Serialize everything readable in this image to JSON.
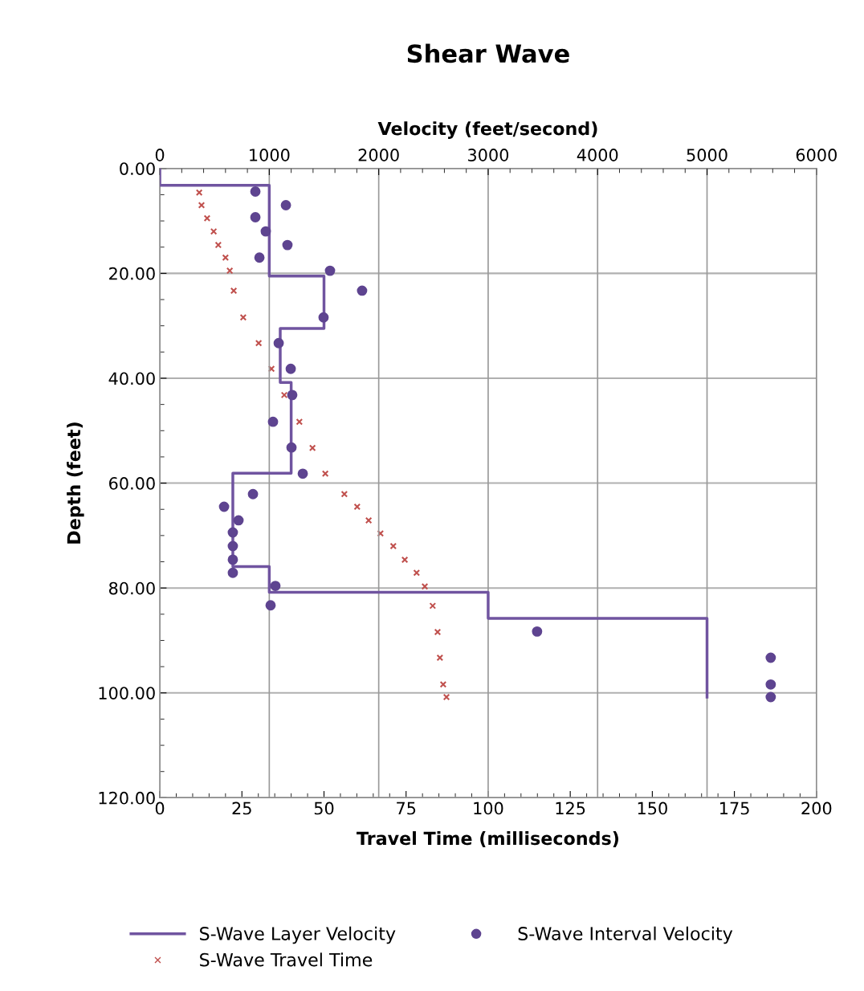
{
  "chart_data": {
    "type": "line",
    "title": "Shear Wave",
    "xlabel": "Travel Time (milliseconds)",
    "x2label": "Velocity (feet/second)",
    "ylabel": "Depth (feet)",
    "xlim": [
      0,
      200
    ],
    "xticks": [
      0,
      25,
      50,
      75,
      100,
      125,
      150,
      175,
      200
    ],
    "x2lim": [
      0,
      6000
    ],
    "x2ticks": [
      0,
      1000,
      2000,
      3000,
      4000,
      5000,
      6000
    ],
    "ylim": [
      120,
      0
    ],
    "yticks": [
      {
        "value": 0,
        "label": "0.00"
      },
      {
        "value": 20,
        "label": "20.00"
      },
      {
        "value": 40,
        "label": "40.00"
      },
      {
        "value": 60,
        "label": "60.00"
      },
      {
        "value": 80,
        "label": "80.00"
      },
      {
        "value": 100,
        "label": "100.00"
      },
      {
        "value": 120,
        "label": "120.00"
      }
    ],
    "grid": true,
    "legend": "bottom",
    "series": [
      {
        "name": "S-Wave Layer Velocity",
        "axis": "x2",
        "color": "#7054a0",
        "marker": "none",
        "line_style": "solid",
        "x": [
          0,
          0,
          1000,
          1000,
          1500,
          1500,
          1100,
          1100,
          1200,
          1200,
          667,
          667,
          1000,
          1000,
          3000,
          3000,
          5000,
          5000
        ],
        "values": [
          0,
          3.2,
          3.2,
          20.5,
          20.5,
          30.5,
          30.5,
          40.8,
          40.8,
          58.1,
          58.1,
          75.9,
          75.9,
          80.8,
          80.8,
          85.8,
          85.8,
          100.8
        ]
      },
      {
        "name": "S-Wave Interval Velocity",
        "type": "scatter",
        "axis": "x2",
        "color": "#5e4490",
        "marker": "circle",
        "x": [
          873,
          1152,
          873,
          968,
          1166,
          910,
          1555,
          1848,
          1496,
          1086,
          1196,
          1210,
          1034,
          1203,
          1306,
          851,
          587,
          719,
          667,
          667,
          667,
          667,
          1056,
          1012,
          3447,
          5582,
          5582,
          5582
        ],
        "values": [
          4.4,
          7.0,
          9.3,
          12.0,
          14.6,
          17.0,
          19.5,
          23.3,
          28.4,
          33.3,
          38.2,
          43.2,
          48.3,
          53.2,
          58.2,
          62.1,
          64.5,
          67.1,
          69.4,
          72.0,
          74.6,
          77.1,
          79.6,
          83.3,
          88.3,
          93.3,
          98.4,
          100.8
        ]
      },
      {
        "name": "S-Wave Travel Time",
        "type": "scatter",
        "color": "#c0504d",
        "marker": "cross",
        "x": [
          12.0,
          12.7,
          14.4,
          16.4,
          17.8,
          20.0,
          21.3,
          22.5,
          25.4,
          30.1,
          34.0,
          37.9,
          42.5,
          46.5,
          50.4,
          56.2,
          60.1,
          63.6,
          67.2,
          71.1,
          74.6,
          78.2,
          80.7,
          83.1,
          84.6,
          85.3,
          86.3,
          87.3
        ],
        "values": [
          4.6,
          7.0,
          9.5,
          12.0,
          14.6,
          17.0,
          19.5,
          23.3,
          28.4,
          33.3,
          38.2,
          43.2,
          48.3,
          53.3,
          58.2,
          62.1,
          64.5,
          67.1,
          69.6,
          72.0,
          74.6,
          77.1,
          79.7,
          83.4,
          88.4,
          93.3,
          98.4,
          100.8
        ]
      }
    ]
  }
}
